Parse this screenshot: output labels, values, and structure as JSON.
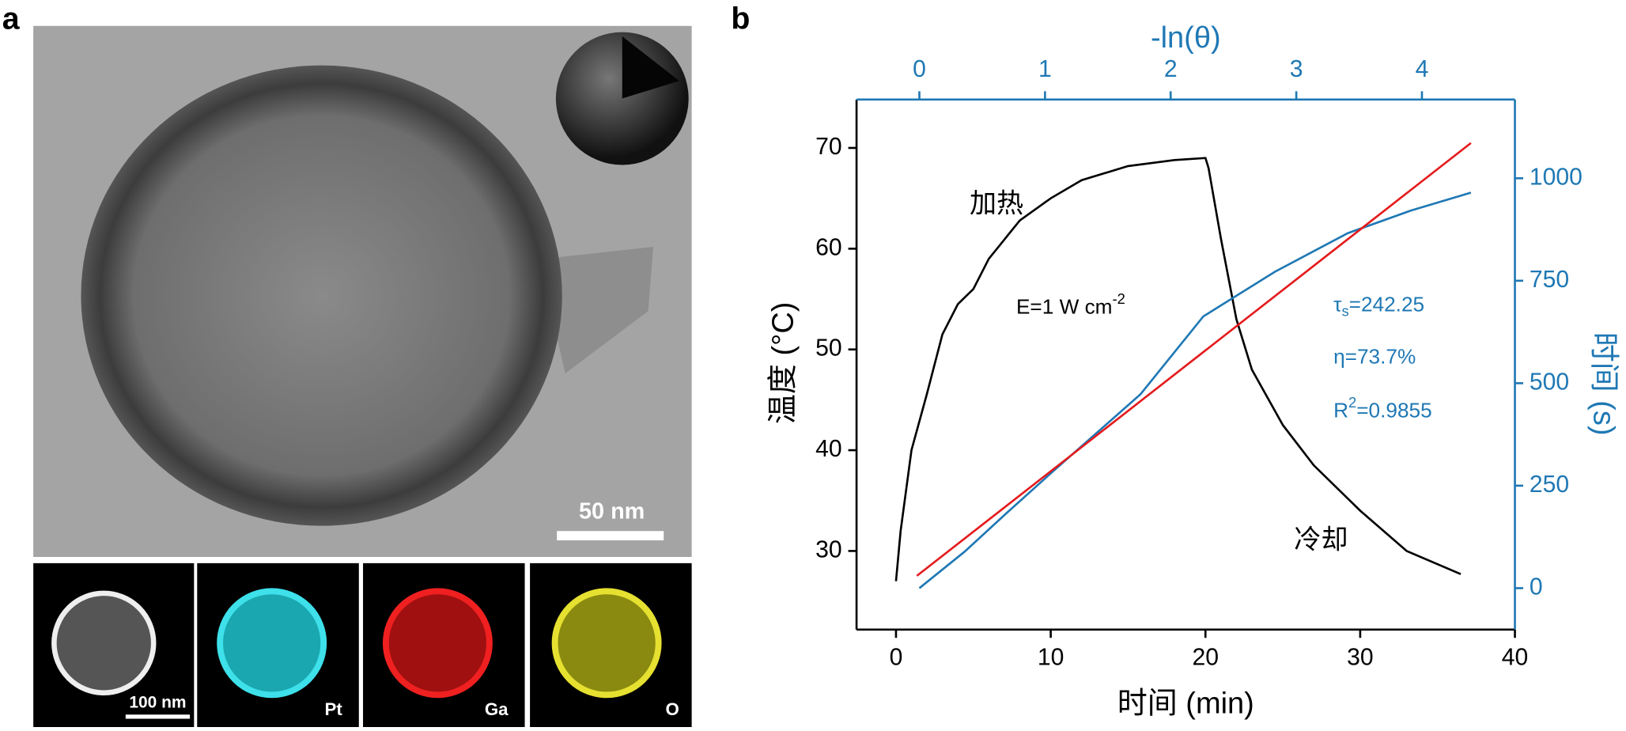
{
  "figure": {
    "panel_a": "a",
    "panel_b": "b",
    "scale_bar_tem": "50 nm",
    "scale_bar_map": "100 nm",
    "map_labels": [
      "Pt",
      "Ga",
      "O"
    ]
  },
  "chart_data": {
    "type": "line",
    "x_label": "时间 (min)",
    "y_label": "温度 (°C)",
    "y2_label": "时间 (s)",
    "x2_label": "-ln(θ)",
    "xlim": [
      -2.55,
      40
    ],
    "xticks": [
      0,
      10,
      20,
      30,
      40
    ],
    "ylim": [
      22.2,
      74.8
    ],
    "yticks": [
      30,
      40,
      50,
      60,
      70
    ],
    "y2lim": [
      -101,
      1192
    ],
    "y2ticks": [
      0,
      250,
      500,
      750,
      1000
    ],
    "x2lim": [
      -0.5,
      4.74
    ],
    "x2ticks": [
      0,
      1,
      2,
      3,
      4
    ],
    "annotations": [
      {
        "text": "加热"
      },
      {
        "text": "冷却"
      },
      {
        "text": "E=1 W cm",
        "sup": "-2"
      },
      {
        "text": "τ",
        "sub": "s",
        "tail": "=242.25"
      },
      {
        "text": "η=73.7%"
      },
      {
        "text": "R",
        "sup": "2",
        "tail": "=0.9855"
      }
    ],
    "series": [
      {
        "color": "#000000",
        "x": [
          0,
          0.3,
          1,
          2,
          3,
          4,
          5,
          6,
          8,
          10,
          12,
          15,
          18,
          20,
          20.2,
          21,
          22,
          23,
          25,
          27,
          30,
          33,
          36.5
        ],
        "values": [
          27,
          32,
          40,
          45.6,
          51.5,
          54.5,
          56,
          59,
          62.8,
          65,
          66.8,
          68.2,
          68.8,
          69,
          68,
          61,
          53,
          48,
          42.5,
          38.5,
          34,
          30,
          27.7
        ]
      },
      {
        "color": "#1f78b4",
        "xaxis": "x2",
        "axis": "y2",
        "x": [
          0,
          0.36,
          0.69,
          1.06,
          1.76,
          2.26,
          2.83,
          3.41,
          3.91,
          4.39
        ],
        "values": [
          0,
          89,
          182,
          284,
          473,
          663,
          772,
          866,
          921,
          965
        ]
      },
      {
        "color": "#e41a1c",
        "xaxis": "x2",
        "axis": "y2",
        "x": [
          -0.02,
          4.39
        ],
        "values": [
          30,
          1086
        ]
      }
    ]
  }
}
